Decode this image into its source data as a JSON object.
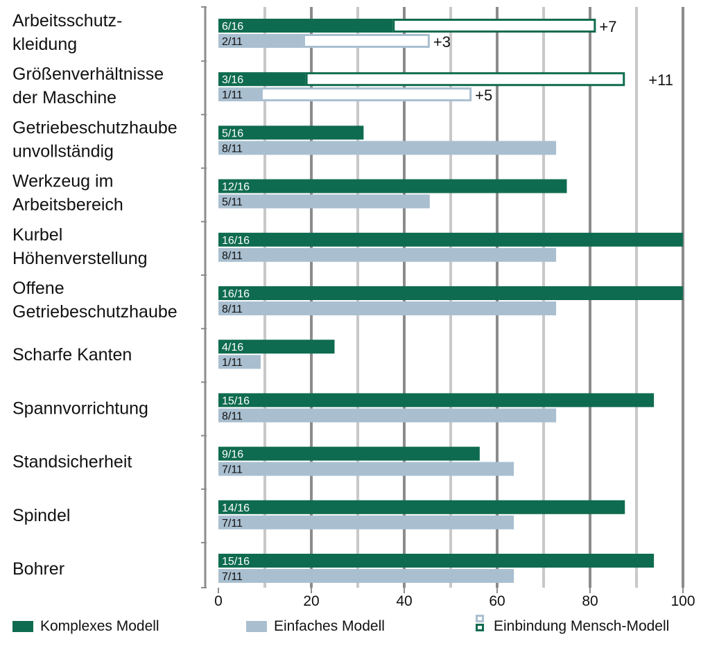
{
  "chart_data": {
    "type": "bar",
    "orientation": "horizontal",
    "xlim": [
      0,
      100
    ],
    "xticks": [
      "0",
      "20",
      "40",
      "60",
      "80",
      "100"
    ],
    "categories": [
      [
        "Arbeitsschutz-",
        "kleidung"
      ],
      [
        "Größenverhältnisse",
        "der Maschine"
      ],
      [
        "Getriebeschutzhaube",
        "unvollständig"
      ],
      [
        "Werkzeug im",
        "Arbeitsbereich"
      ],
      [
        "Kurbel",
        "Höhenverstellung"
      ],
      [
        "Offene",
        "Getriebeschutzhaube"
      ],
      [
        "Scharfe Kanten"
      ],
      [
        "Spannvorrichtung"
      ],
      [
        "Standsicherheit"
      ],
      [
        "Spindel"
      ],
      [
        "Bohrer"
      ]
    ],
    "series": [
      {
        "name": "Komplexes Modell",
        "color": "#0f6b4f",
        "values": [
          37.5,
          18.75,
          31.25,
          75,
          100,
          100,
          25,
          93.75,
          56.25,
          87.5,
          93.75
        ],
        "labels": [
          "6/16",
          "3/16",
          "5/16",
          "12/16",
          "16/16",
          "16/16",
          "4/16",
          "15/16",
          "9/16",
          "14/16",
          "15/16"
        ],
        "label_color": "#ffffff"
      },
      {
        "name": "Einfaches Modell",
        "color": "#a9bfd0",
        "values": [
          18.2,
          9.1,
          72.7,
          45.5,
          72.7,
          72.7,
          9.1,
          72.7,
          63.6,
          63.6,
          63.6
        ],
        "labels": [
          "2/11",
          "1/11",
          "8/11",
          "5/11",
          "8/11",
          "8/11",
          "1/11",
          "8/11",
          "7/11",
          "7/11",
          "7/11"
        ],
        "label_color": "#111111"
      }
    ],
    "extensions": [
      {
        "category_index": 0,
        "series_index": 0,
        "to": 81.25,
        "label": "+7"
      },
      {
        "category_index": 0,
        "series_index": 1,
        "to": 45.5,
        "label": "+3"
      },
      {
        "category_index": 1,
        "series_index": 0,
        "to": 87.5,
        "label": "+11"
      },
      {
        "category_index": 1,
        "series_index": 1,
        "to": 54.5,
        "label": "+5"
      }
    ],
    "legend": [
      {
        "label": "Komplexes Modell",
        "kind": "solid",
        "color": "#0f6b4f"
      },
      {
        "label": "Einfaches Modell",
        "kind": "solid",
        "color": "#a9bfd0"
      },
      {
        "label": "Einbindung Mensch-Modell",
        "kind": "outline",
        "colors": [
          "#a9bfd0",
          "#0f6b4f"
        ]
      }
    ],
    "legend_position": "bottom",
    "grid": true
  }
}
